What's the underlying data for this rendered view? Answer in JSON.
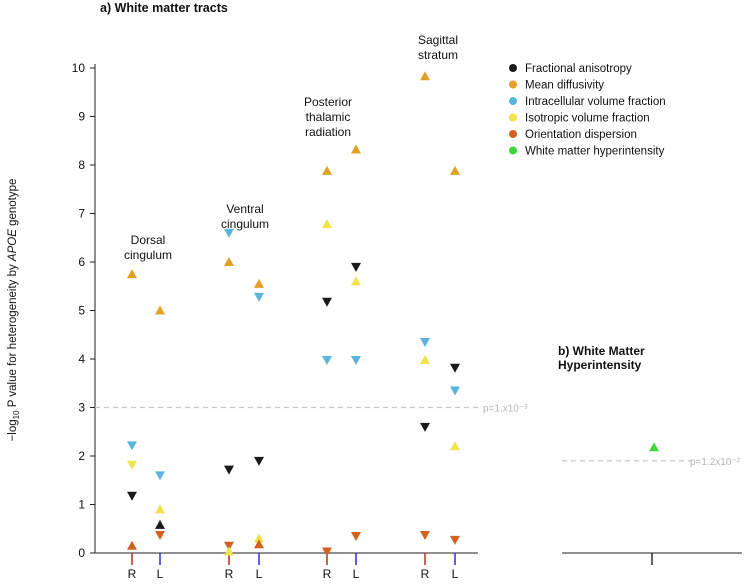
{
  "chart_data": [
    {
      "panel": "a",
      "type": "scatter",
      "title": "a) White matter tracts",
      "ylabel": {
        "prefix": "−log",
        "sub": "10",
        "middle": " P value for heterogeneity by ",
        "italic": "APOE",
        "suffix": " genotype"
      },
      "ylim": [
        0,
        10
      ],
      "yticks": [
        "0",
        "1",
        "2",
        "3",
        "4",
        "5",
        "6",
        "7",
        "8",
        "9",
        "10"
      ],
      "threshold": {
        "value": 3.0,
        "label": "p=1.x10⁻³"
      },
      "grid": false,
      "legend_position": "top-right",
      "legend": [
        {
          "name": "Fractional anisotropy",
          "color": "#1a1a1a"
        },
        {
          "name": "Mean diffusivity",
          "color": "#e3a023"
        },
        {
          "name": "Intracellular volume fraction",
          "color": "#5ab4dc"
        },
        {
          "name": "Isotropic volume fraction",
          "color": "#f2e24c"
        },
        {
          "name": "Orientation dispersion",
          "color": "#d2601e"
        },
        {
          "name": "White matter hyperintensity",
          "color": "#3dd43d"
        }
      ],
      "tracts": [
        {
          "name": [
            "Dorsal",
            "cingulum"
          ],
          "hemispheres": [
            {
              "label": "R",
              "color": "#c0392b",
              "points": [
                {
                  "measure": "Mean diffusivity",
                  "value": 5.75,
                  "direction": "up"
                },
                {
                  "measure": "Intracellular volume fraction",
                  "value": 2.22,
                  "direction": "down"
                },
                {
                  "measure": "Isotropic volume fraction",
                  "value": 1.82,
                  "direction": "down"
                },
                {
                  "measure": "Fractional anisotropy",
                  "value": 1.18,
                  "direction": "down"
                },
                {
                  "measure": "Orientation dispersion",
                  "value": 0.15,
                  "direction": "up"
                }
              ]
            },
            {
              "label": "L",
              "color": "#3b3bd8",
              "points": [
                {
                  "measure": "Mean diffusivity",
                  "value": 5.0,
                  "direction": "up"
                },
                {
                  "measure": "Intracellular volume fraction",
                  "value": 1.6,
                  "direction": "down"
                },
                {
                  "measure": "Isotropic volume fraction",
                  "value": 0.9,
                  "direction": "up"
                },
                {
                  "measure": "Fractional anisotropy",
                  "value": 0.58,
                  "direction": "up"
                },
                {
                  "measure": "Orientation dispersion",
                  "value": 0.37,
                  "direction": "down"
                }
              ]
            }
          ]
        },
        {
          "name": [
            "Ventral",
            "cingulum"
          ],
          "hemispheres": [
            {
              "label": "R",
              "color": "#c0392b",
              "points": [
                {
                  "measure": "Intracellular volume fraction",
                  "value": 6.6,
                  "direction": "down"
                },
                {
                  "measure": "Mean diffusivity",
                  "value": 6.0,
                  "direction": "up"
                },
                {
                  "measure": "Fractional anisotropy",
                  "value": 1.72,
                  "direction": "down"
                },
                {
                  "measure": "Orientation dispersion",
                  "value": 0.15,
                  "direction": "down"
                },
                {
                  "measure": "Isotropic volume fraction",
                  "value": 0.03,
                  "direction": "up"
                }
              ]
            },
            {
              "label": "L",
              "color": "#3b3bd8",
              "points": [
                {
                  "measure": "Mean diffusivity",
                  "value": 5.55,
                  "direction": "up"
                },
                {
                  "measure": "Intracellular volume fraction",
                  "value": 5.28,
                  "direction": "down"
                },
                {
                  "measure": "Fractional anisotropy",
                  "value": 1.9,
                  "direction": "down"
                },
                {
                  "measure": "Isotropic volume fraction",
                  "value": 0.3,
                  "direction": "up"
                },
                {
                  "measure": "Orientation dispersion",
                  "value": 0.18,
                  "direction": "up"
                }
              ]
            }
          ]
        },
        {
          "name": [
            "Posterior",
            "thalamic",
            "radiation"
          ],
          "hemispheres": [
            {
              "label": "R",
              "color": "#c0392b",
              "points": [
                {
                  "measure": "Mean diffusivity",
                  "value": 7.88,
                  "direction": "up"
                },
                {
                  "measure": "Isotropic volume fraction",
                  "value": 6.78,
                  "direction": "up"
                },
                {
                  "measure": "Fractional anisotropy",
                  "value": 5.18,
                  "direction": "down"
                },
                {
                  "measure": "Intracellular volume fraction",
                  "value": 3.98,
                  "direction": "down"
                },
                {
                  "measure": "Orientation dispersion",
                  "value": 0.03,
                  "direction": "down"
                }
              ]
            },
            {
              "label": "L",
              "color": "#3b3bd8",
              "points": [
                {
                  "measure": "Mean diffusivity",
                  "value": 8.32,
                  "direction": "up"
                },
                {
                  "measure": "Fractional anisotropy",
                  "value": 5.9,
                  "direction": "down"
                },
                {
                  "measure": "Isotropic volume fraction",
                  "value": 5.6,
                  "direction": "up"
                },
                {
                  "measure": "Intracellular volume fraction",
                  "value": 3.98,
                  "direction": "down"
                },
                {
                  "measure": "Orientation dispersion",
                  "value": 0.35,
                  "direction": "down"
                }
              ]
            }
          ]
        },
        {
          "name": [
            "Sagittal",
            "stratum"
          ],
          "hemispheres": [
            {
              "label": "R",
              "color": "#c0392b",
              "points": [
                {
                  "measure": "Mean diffusivity",
                  "value": 9.83,
                  "direction": "up"
                },
                {
                  "measure": "Intracellular volume fraction",
                  "value": 4.35,
                  "direction": "down"
                },
                {
                  "measure": "Isotropic volume fraction",
                  "value": 3.98,
                  "direction": "up"
                },
                {
                  "measure": "Fractional anisotropy",
                  "value": 2.6,
                  "direction": "down"
                },
                {
                  "measure": "Orientation dispersion",
                  "value": 0.37,
                  "direction": "down"
                }
              ]
            },
            {
              "label": "L",
              "color": "#3b3bd8",
              "points": [
                {
                  "measure": "Mean diffusivity",
                  "value": 7.88,
                  "direction": "up"
                },
                {
                  "measure": "Fractional anisotropy",
                  "value": 3.82,
                  "direction": "down"
                },
                {
                  "measure": "Intracellular volume fraction",
                  "value": 3.35,
                  "direction": "down"
                },
                {
                  "measure": "Isotropic volume fraction",
                  "value": 2.2,
                  "direction": "up"
                },
                {
                  "measure": "Orientation dispersion",
                  "value": 0.27,
                  "direction": "down"
                }
              ]
            }
          ]
        }
      ]
    },
    {
      "panel": "b",
      "type": "scatter",
      "title": [
        "b) White Matter",
        "Hyperintensity"
      ],
      "ylim": [
        0,
        10
      ],
      "threshold": {
        "value": 1.9,
        "label": "p=1.2x10⁻²"
      },
      "points": [
        {
          "measure": "White matter hyperintensity",
          "value": 2.18,
          "direction": "up"
        }
      ]
    }
  ]
}
